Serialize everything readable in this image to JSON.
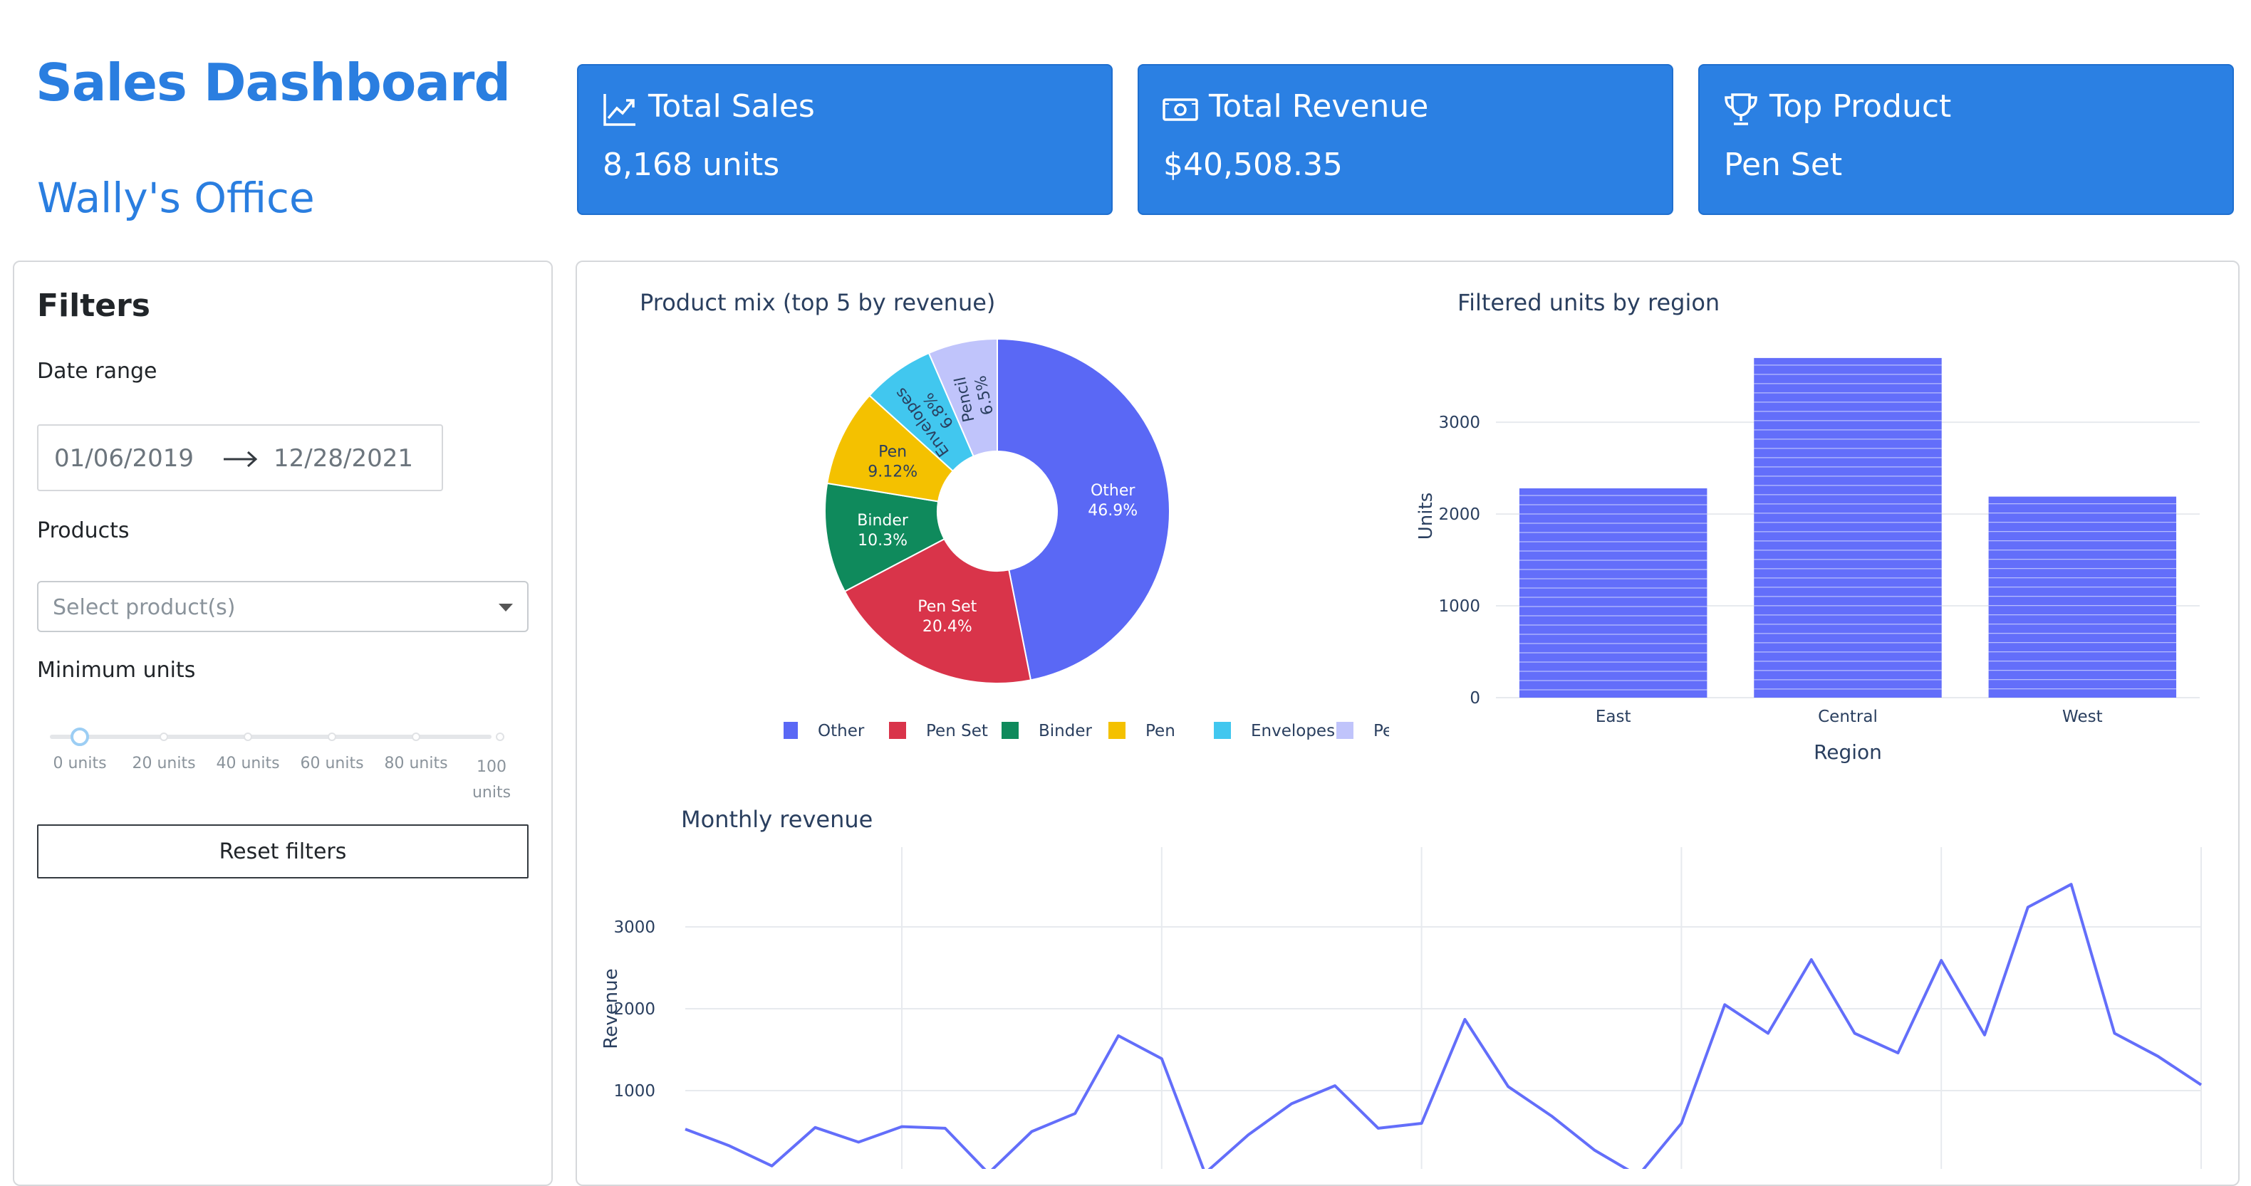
{
  "header": {
    "title": "Sales Dashboard",
    "subtitle": "Wally's Office"
  },
  "kpis": [
    {
      "label": "Total Sales",
      "value": "8,168 units",
      "icon": "trend-chart-icon"
    },
    {
      "label": "Total Revenue",
      "value": "$40,508.35",
      "icon": "cash-icon"
    },
    {
      "label": "Top Product",
      "value": "Pen Set",
      "icon": "trophy-icon"
    }
  ],
  "filters": {
    "title": "Filters",
    "date_range_label": "Date range",
    "start_date": "01/06/2019",
    "end_date": "12/28/2021",
    "products_label": "Products",
    "products_placeholder": "Select product(s)",
    "min_units_label": "Minimum units",
    "slider_value_units": 0,
    "slider_ticks": [
      "0 units",
      "20 units",
      "40 units",
      "60 units",
      "80 units",
      "100 units"
    ],
    "reset_label": "Reset filters"
  },
  "colors": {
    "accent": "#2a7ee0",
    "kpi_bg": "#2b80e3",
    "bar": "#636efa"
  },
  "chart_data": [
    {
      "type": "pie",
      "title": "Product mix (top 5 by revenue)",
      "hole": true,
      "labels": [
        "Other",
        "Pen Set",
        "Binder",
        "Pen",
        "Envelopes",
        "Pencil"
      ],
      "values": [
        46.9,
        20.4,
        10.3,
        9.12,
        6.8,
        6.5
      ],
      "value_labels": [
        "46.9%",
        "20.4%",
        "10.3%",
        "9.12%",
        "6.8%",
        "6.5%"
      ],
      "colors": [
        "#5a68f5",
        "#d9344a",
        "#0f8a5c",
        "#f4c100",
        "#41c7ef",
        "#c0c4fb"
      ],
      "legend_position": "bottom"
    },
    {
      "type": "bar",
      "title": "Filtered units by region",
      "categories": [
        "East",
        "Central",
        "West"
      ],
      "values": [
        2280,
        3700,
        2190
      ],
      "xlabel": "Region",
      "ylabel": "Units",
      "yticks": [
        0,
        1000,
        2000,
        3000
      ],
      "ylim": [
        0,
        3800
      ],
      "grid": true
    },
    {
      "type": "line",
      "title": "Monthly revenue",
      "ylabel": "Revenue",
      "yticks": [
        1000,
        2000,
        3000
      ],
      "ylim": [
        -200,
        3800
      ],
      "x": [
        0,
        1,
        2,
        3,
        4,
        5,
        6,
        7,
        8,
        9,
        10,
        11,
        12,
        13,
        14,
        15,
        16,
        17,
        18,
        19,
        20,
        21,
        22,
        23,
        24,
        25,
        26,
        27,
        28,
        29,
        30,
        31,
        32,
        33,
        34,
        35
      ],
      "values": [
        530,
        330,
        80,
        550,
        370,
        560,
        540,
        -10,
        500,
        720,
        1670,
        1390,
        -10,
        460,
        840,
        1060,
        540,
        600,
        1870,
        1050,
        690,
        270,
        -40,
        600,
        2050,
        1700,
        2600,
        1700,
        1460,
        2590,
        1680,
        3240,
        3520,
        1700,
        1420,
        1070
      ],
      "grid": true
    }
  ]
}
